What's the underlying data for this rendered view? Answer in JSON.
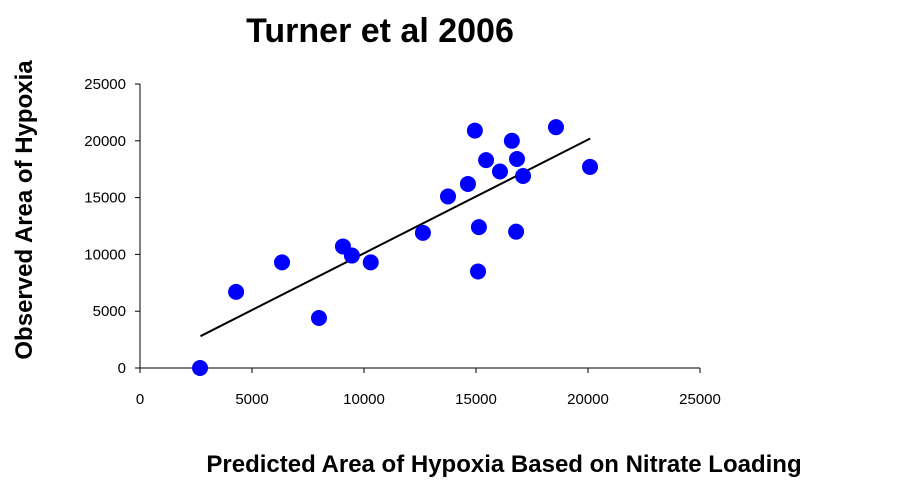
{
  "chart_data": {
    "type": "scatter",
    "title": "Turner et al 2006",
    "x_label": "Predicted Area of Hypoxia Based on Nitrate Loading",
    "y_label": "Observed Area of Hypoxia",
    "series": [
      {
        "color": "#0000ff",
        "x": [
          2680,
          4290,
          6340,
          7990,
          9060,
          9460,
          10300,
          12630,
          13750,
          14640,
          14950,
          15130,
          15090,
          15450,
          16070,
          16600,
          16830,
          16790,
          17100,
          18570,
          20090
        ],
        "values": [
          0,
          6700,
          9300,
          4400,
          10700,
          9900,
          9300,
          11900,
          15100,
          16200,
          20900,
          12400,
          8500,
          18300,
          17300,
          20000,
          18400,
          12000,
          16900,
          21200,
          17700
        ]
      }
    ],
    "trendline": {
      "color": "#000000",
      "x": [
        2700,
        20100
      ],
      "values": [
        2800,
        20200
      ]
    },
    "xlim": [
      0,
      25000
    ],
    "xticks": [
      0,
      5000,
      10000,
      15000,
      20000,
      25000
    ],
    "ylim": [
      0,
      25000
    ],
    "yticks": [
      0,
      5000,
      10000,
      15000,
      20000,
      25000
    ]
  }
}
